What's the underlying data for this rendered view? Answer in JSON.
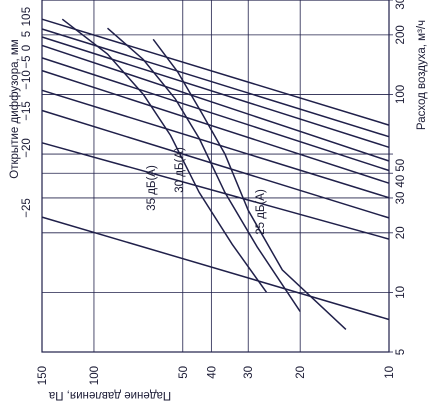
{
  "chart_data": {
    "type": "line",
    "xlabel": "Падение давления, Па",
    "left_label": "Открытие диффузора, мм",
    "ylabel": "Расход воздуха, м³/ч",
    "x_scale": "log",
    "y_scale": "log",
    "xlim": [
      10,
      150
    ],
    "ylim": [
      5,
      300
    ],
    "grid": true,
    "x_ticks": [
      150,
      100,
      50,
      40,
      30,
      20,
      10
    ],
    "y_ticks": [
      5,
      10,
      20,
      30,
      40,
      50,
      100,
      200,
      300
    ],
    "y_tick_labels": [
      "5",
      "10",
      "20",
      "30",
      "40 50",
      "",
      "100",
      "200",
      "300"
    ],
    "opening_ticks": [
      "5",
      "10",
      "5",
      "0",
      "−5",
      "−10",
      "−15",
      "−20",
      "−25"
    ],
    "opening_series": [
      {
        "name": "10",
        "points": [
          [
            150,
            240
          ],
          [
            10,
            70
          ]
        ]
      },
      {
        "name": "5",
        "points": [
          [
            150,
            214
          ],
          [
            10,
            61.2
          ]
        ]
      },
      {
        "name": "0",
        "points": [
          [
            150,
            195
          ],
          [
            10,
            54.1
          ]
        ]
      },
      {
        "name": "−5",
        "points": [
          [
            150,
            177
          ],
          [
            10,
            46.1
          ]
        ]
      },
      {
        "name": "−10",
        "points": [
          [
            150,
            153
          ],
          [
            10,
            41.3
          ]
        ]
      },
      {
        "name": "",
        "points": [
          [
            150,
            132
          ],
          [
            10,
            35.6
          ]
        ]
      },
      {
        "name": "−15",
        "points": [
          [
            150,
            105
          ],
          [
            10,
            30.1
          ]
        ]
      },
      {
        "name": "",
        "points": [
          [
            150,
            83
          ],
          [
            10,
            23.8
          ]
        ]
      },
      {
        "name": "−20",
        "points": [
          [
            150,
            57
          ],
          [
            10,
            18.6
          ]
        ]
      },
      {
        "name": "−25",
        "points": [
          [
            150,
            24
          ],
          [
            10,
            7.3
          ]
        ]
      }
    ],
    "noise_series": [
      {
        "name": "35 дБ(А)",
        "points": [
          [
            128,
            240
          ],
          [
            90,
            160
          ],
          [
            68,
            100
          ],
          [
            55,
            62
          ],
          [
            44,
            32
          ],
          [
            34,
            17.5
          ],
          [
            26,
            10
          ]
        ]
      },
      {
        "name": "30 дБ(А)",
        "points": [
          [
            90,
            216
          ],
          [
            68,
            150
          ],
          [
            53,
            95
          ],
          [
            44,
            60
          ],
          [
            36,
            32
          ],
          [
            28,
            17
          ],
          [
            20,
            8
          ]
        ]
      },
      {
        "name": "25 дБ(А)",
        "points": [
          [
            63,
            190
          ],
          [
            52,
            130
          ],
          [
            43,
            80
          ],
          [
            36,
            50
          ],
          [
            30,
            26
          ],
          [
            23,
            13
          ],
          [
            14,
            6.5
          ]
        ]
      }
    ]
  }
}
